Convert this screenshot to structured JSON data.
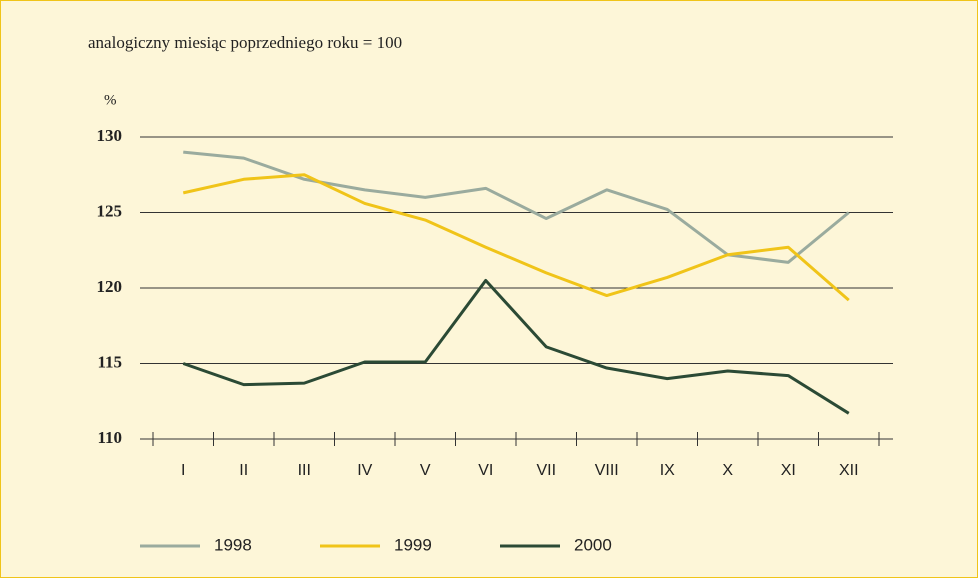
{
  "chart_data": {
    "type": "line",
    "subtitle": "analogiczny miesiąc poprzedniego roku = 100",
    "y_label": "%",
    "categories": [
      "I",
      "II",
      "III",
      "IV",
      "V",
      "VI",
      "VII",
      "VIII",
      "IX",
      "X",
      "XI",
      "XII"
    ],
    "series": [
      {
        "name": "1998",
        "color": "#9aab9e",
        "values": [
          129.0,
          128.6,
          127.2,
          126.5,
          126.0,
          126.6,
          124.6,
          126.5,
          125.2,
          122.2,
          121.7,
          125.0
        ]
      },
      {
        "name": "1999",
        "color": "#f0c419",
        "values": [
          126.3,
          127.2,
          127.5,
          125.6,
          124.5,
          122.7,
          121.0,
          119.5,
          120.7,
          122.2,
          122.7,
          119.2
        ]
      },
      {
        "name": "2000",
        "color": "#2b4a35",
        "values": [
          115.0,
          113.6,
          113.7,
          115.1,
          115.1,
          120.5,
          116.1,
          114.7,
          114.0,
          114.5,
          114.2,
          111.7
        ]
      }
    ],
    "ylim": [
      110,
      130
    ],
    "yticks": [
      110,
      115,
      120,
      125,
      130
    ],
    "grid": true
  }
}
